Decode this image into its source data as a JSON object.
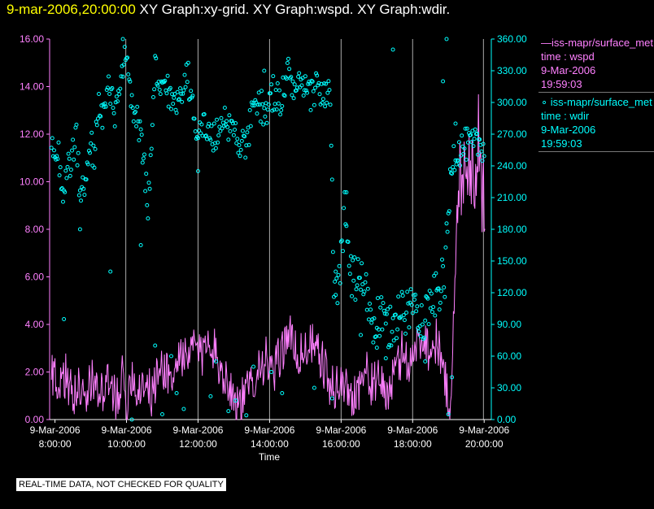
{
  "header": {
    "timestamp": "9-mar-2006,20:00:00",
    "graphs": "XY Graph:xy-grid.  XY Graph:wspd.  XY Graph:wdir."
  },
  "legend": [
    {
      "line1": "—iss-mapr/surface_met",
      "line2": "time : wspd",
      "line3": "9-Mar-2006",
      "line4": "19:59:03"
    },
    {
      "line1": "∘  iss-mapr/surface_met",
      "line2": "time : wdir",
      "line3": "9-Mar-2006",
      "line4": "19:59:03"
    }
  ],
  "footer": {
    "note": "REAL-TIME DATA, NOT CHECKED FOR QUALITY"
  },
  "colors": {
    "wspd": "#ff80ff",
    "wdir": "#00ffff",
    "grid": "#aaaaaa",
    "axis_text": "#ffffff"
  },
  "chart_data": {
    "type": "line",
    "xlabel": "Time",
    "x_range_hours": [
      7.85,
      20.2
    ],
    "x_ticks": [
      {
        "h": 8,
        "date": "9-Mar-2006",
        "time": "8:00:00"
      },
      {
        "h": 10,
        "date": "9-Mar-2006",
        "time": "10:00:00"
      },
      {
        "h": 12,
        "date": "9-Mar-2006",
        "time": "12:00:00"
      },
      {
        "h": 14,
        "date": "9-Mar-2006",
        "time": "14:00:00"
      },
      {
        "h": 16,
        "date": "9-Mar-2006",
        "time": "16:00:00"
      },
      {
        "h": 18,
        "date": "9-Mar-2006",
        "time": "18:00:00"
      },
      {
        "h": 20,
        "date": "9-Mar-2006",
        "time": "20:00:00"
      }
    ],
    "grid_hours": [
      9.98,
      12.0,
      14.0,
      16.0,
      18.0,
      19.98
    ],
    "y_left": {
      "range": [
        0,
        16
      ],
      "ticks": [
        "0.00",
        "2.00",
        "4.00",
        "6.00",
        "8.00",
        "10.00",
        "12.00",
        "14.00",
        "16.00"
      ],
      "color": "#ff80ff"
    },
    "y_right": {
      "range": [
        0,
        360
      ],
      "ticks": [
        "0.00",
        "30.00",
        "60.00",
        "90.00",
        "120.00",
        "150.00",
        "180.00",
        "210.00",
        "240.00",
        "270.00",
        "300.00",
        "330.00",
        "360.00"
      ],
      "color": "#00ffff"
    },
    "series": [
      {
        "name": "time : wspd",
        "axis": "left",
        "style": "line",
        "keypoints": [
          [
            7.9,
            2.2
          ],
          [
            8.1,
            1.0
          ],
          [
            8.3,
            1.9
          ],
          [
            8.5,
            0.9
          ],
          [
            8.7,
            1.5
          ],
          [
            8.9,
            1.1
          ],
          [
            9.1,
            1.8
          ],
          [
            9.3,
            1.0
          ],
          [
            9.5,
            1.4
          ],
          [
            9.7,
            0.9
          ],
          [
            9.9,
            1.8
          ],
          [
            10.0,
            0.2
          ],
          [
            10.1,
            2.1
          ],
          [
            10.3,
            1.2
          ],
          [
            10.5,
            1.7
          ],
          [
            10.7,
            1.0
          ],
          [
            10.9,
            2.0
          ],
          [
            11.1,
            2.2
          ],
          [
            11.3,
            1.5
          ],
          [
            11.5,
            3.0
          ],
          [
            11.7,
            2.2
          ],
          [
            11.9,
            3.3
          ],
          [
            12.1,
            2.5
          ],
          [
            12.3,
            3.8
          ],
          [
            12.5,
            2.6
          ],
          [
            12.7,
            2.0
          ],
          [
            12.9,
            1.4
          ],
          [
            13.1,
            0.6
          ],
          [
            13.3,
            0.9
          ],
          [
            13.5,
            1.6
          ],
          [
            13.7,
            2.3
          ],
          [
            13.9,
            2.5
          ],
          [
            14.1,
            1.8
          ],
          [
            14.3,
            2.7
          ],
          [
            14.5,
            3.7
          ],
          [
            14.7,
            3.0
          ],
          [
            14.9,
            2.6
          ],
          [
            15.1,
            3.3
          ],
          [
            15.3,
            2.8
          ],
          [
            15.5,
            2.4
          ],
          [
            15.7,
            1.2
          ],
          [
            15.9,
            1.5
          ],
          [
            16.1,
            1.4
          ],
          [
            16.3,
            1.0
          ],
          [
            16.5,
            1.4
          ],
          [
            16.7,
            2.0
          ],
          [
            16.9,
            1.4
          ],
          [
            17.1,
            1.6
          ],
          [
            17.3,
            1.1
          ],
          [
            17.5,
            1.8
          ],
          [
            17.7,
            2.8
          ],
          [
            17.9,
            2.4
          ],
          [
            18.1,
            3.0
          ],
          [
            18.3,
            3.6
          ],
          [
            18.5,
            2.8
          ],
          [
            18.7,
            3.4
          ],
          [
            18.9,
            1.6
          ],
          [
            19.05,
            0.6
          ],
          [
            19.15,
            4.2
          ],
          [
            19.3,
            10.0
          ],
          [
            19.5,
            11.3
          ],
          [
            19.7,
            10.2
          ],
          [
            19.85,
            11.8
          ],
          [
            19.95,
            8.8
          ],
          [
            20.0,
            9.8
          ]
        ]
      },
      {
        "name": "time : wdir",
        "axis": "right",
        "style": "circles",
        "keypoints": [
          [
            7.9,
            268
          ],
          [
            8.1,
            250
          ],
          [
            8.2,
            218
          ],
          [
            8.3,
            228
          ],
          [
            8.4,
            240
          ],
          [
            8.5,
            255
          ],
          [
            8.6,
            268
          ],
          [
            8.7,
            210
          ],
          [
            8.9,
            232
          ],
          [
            9.0,
            260
          ],
          [
            9.1,
            250
          ],
          [
            9.2,
            300
          ],
          [
            9.3,
            285
          ],
          [
            9.5,
            310
          ],
          [
            9.7,
            290
          ],
          [
            9.8,
            305
          ],
          [
            9.95,
            340
          ],
          [
            10.1,
            315
          ],
          [
            10.2,
            285
          ],
          [
            10.4,
            275
          ],
          [
            10.5,
            240
          ],
          [
            10.6,
            200
          ],
          [
            10.7,
            250
          ],
          [
            10.8,
            335
          ],
          [
            10.9,
            310
          ],
          [
            11.1,
            320
          ],
          [
            11.3,
            295
          ],
          [
            11.5,
            310
          ],
          [
            11.7,
            330
          ],
          [
            11.9,
            280
          ],
          [
            12.1,
            280
          ],
          [
            12.3,
            270
          ],
          [
            12.5,
            265
          ],
          [
            12.7,
            290
          ],
          [
            12.9,
            275
          ],
          [
            13.1,
            270
          ],
          [
            13.3,
            255
          ],
          [
            13.5,
            285
          ],
          [
            13.7,
            300
          ],
          [
            13.9,
            290
          ],
          [
            14.1,
            310
          ],
          [
            14.3,
            300
          ],
          [
            14.5,
            330
          ],
          [
            14.7,
            310
          ],
          [
            14.9,
            315
          ],
          [
            15.1,
            305
          ],
          [
            15.3,
            315
          ],
          [
            15.5,
            310
          ],
          [
            15.7,
            305
          ],
          [
            15.8,
            120
          ],
          [
            15.9,
            110
          ],
          [
            16.1,
            200
          ],
          [
            16.3,
            130
          ],
          [
            16.5,
            135
          ],
          [
            16.7,
            120
          ],
          [
            16.9,
            90
          ],
          [
            17.1,
            95
          ],
          [
            17.3,
            85
          ],
          [
            17.5,
            95
          ],
          [
            17.7,
            100
          ],
          [
            17.9,
            105
          ],
          [
            18.1,
            110
          ],
          [
            18.3,
            95
          ],
          [
            18.5,
            110
          ],
          [
            18.7,
            120
          ],
          [
            18.9,
            135
          ],
          [
            19.1,
            250
          ],
          [
            19.3,
            255
          ],
          [
            19.5,
            260
          ],
          [
            19.7,
            258
          ],
          [
            19.85,
            262
          ],
          [
            20.0,
            260
          ]
        ],
        "outliers": [
          [
            8.25,
            95
          ],
          [
            8.7,
            180
          ],
          [
            9.55,
            140
          ],
          [
            9.9,
            360
          ],
          [
            10.15,
            0
          ],
          [
            10.4,
            165
          ],
          [
            10.8,
            70
          ],
          [
            11.0,
            5
          ],
          [
            11.25,
            60
          ],
          [
            11.4,
            25
          ],
          [
            11.6,
            10
          ],
          [
            12.0,
            235
          ],
          [
            12.35,
            22
          ],
          [
            12.5,
            55
          ],
          [
            12.85,
            8
          ],
          [
            13.05,
            18
          ],
          [
            13.35,
            4
          ],
          [
            13.55,
            50
          ],
          [
            13.85,
            330
          ],
          [
            14.05,
            45
          ],
          [
            14.35,
            25
          ],
          [
            15.25,
            30
          ],
          [
            15.75,
            20
          ],
          [
            15.85,
            140
          ],
          [
            16.15,
            215
          ],
          [
            16.55,
            80
          ],
          [
            17.0,
            68
          ],
          [
            17.25,
            58
          ],
          [
            17.45,
            350
          ],
          [
            18.35,
            55
          ],
          [
            18.85,
            320
          ],
          [
            18.95,
            360
          ],
          [
            19.0,
            5
          ],
          [
            19.1,
            40
          ],
          [
            19.2,
            280
          ]
        ]
      }
    ]
  }
}
